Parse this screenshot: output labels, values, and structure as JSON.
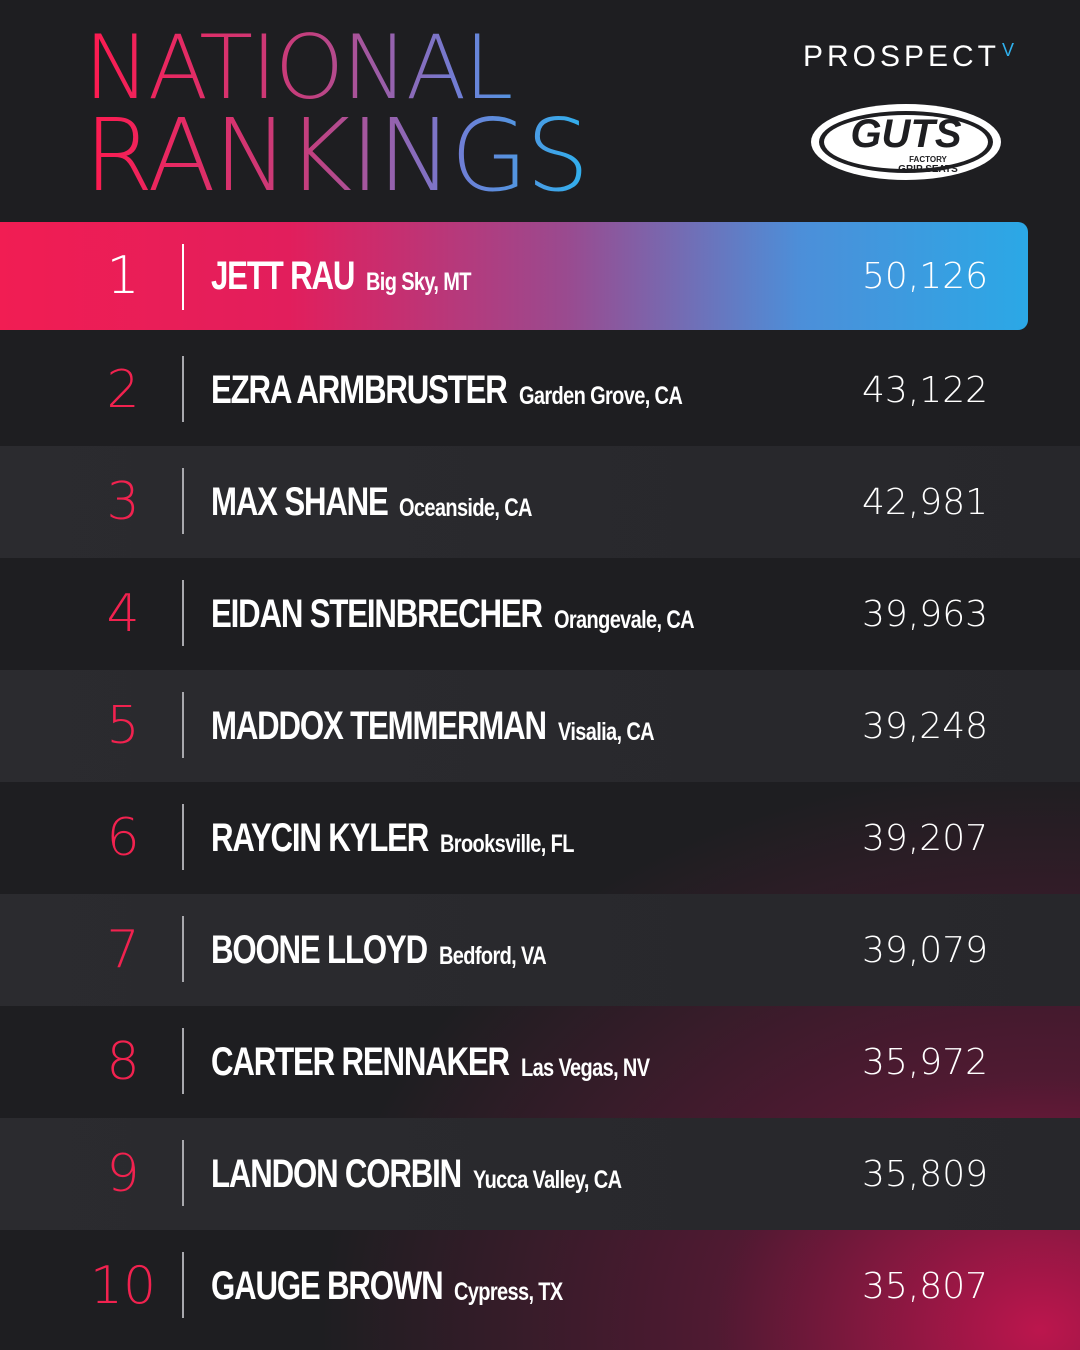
{
  "title": {
    "line1": "NATIONAL",
    "line2": "RANKINGS"
  },
  "brands": {
    "prospect": "PROSPECT",
    "prospect_mark": "V",
    "guts_logo_text": "GUTS",
    "guts_logo_sub1": "FACTORY",
    "guts_logo_sub2": "GRIP SEATS"
  },
  "colors": {
    "accent_pink": "#f1224f",
    "accent_blue": "#2ba8e6",
    "background": "#1e1e21"
  },
  "rankings": [
    {
      "rank": "1",
      "name": "JETT RAU",
      "hometown": "Big Sky, MT",
      "points": "50,126"
    },
    {
      "rank": "2",
      "name": "EZRA ARMBRUSTER",
      "hometown": "Garden Grove, CA",
      "points": "43,122"
    },
    {
      "rank": "3",
      "name": "MAX SHANE",
      "hometown": "Oceanside, CA",
      "points": "42,981"
    },
    {
      "rank": "4",
      "name": "EIDAN STEINBRECHER",
      "hometown": "Orangevale, CA",
      "points": "39,963"
    },
    {
      "rank": "5",
      "name": "MADDOX TEMMERMAN",
      "hometown": "Visalia, CA",
      "points": "39,248"
    },
    {
      "rank": "6",
      "name": "RAYCIN KYLER",
      "hometown": "Brooksville, FL",
      "points": "39,207"
    },
    {
      "rank": "7",
      "name": "BOONE LLOYD",
      "hometown": "Bedford, VA",
      "points": "39,079"
    },
    {
      "rank": "8",
      "name": "CARTER RENNAKER",
      "hometown": "Las Vegas, NV",
      "points": "35,972"
    },
    {
      "rank": "9",
      "name": "LANDON CORBIN",
      "hometown": "Yucca Valley, CA",
      "points": "35,809"
    },
    {
      "rank": "10",
      "name": "GAUGE BROWN",
      "hometown": "Cypress, TX",
      "points": "35,807"
    }
  ]
}
